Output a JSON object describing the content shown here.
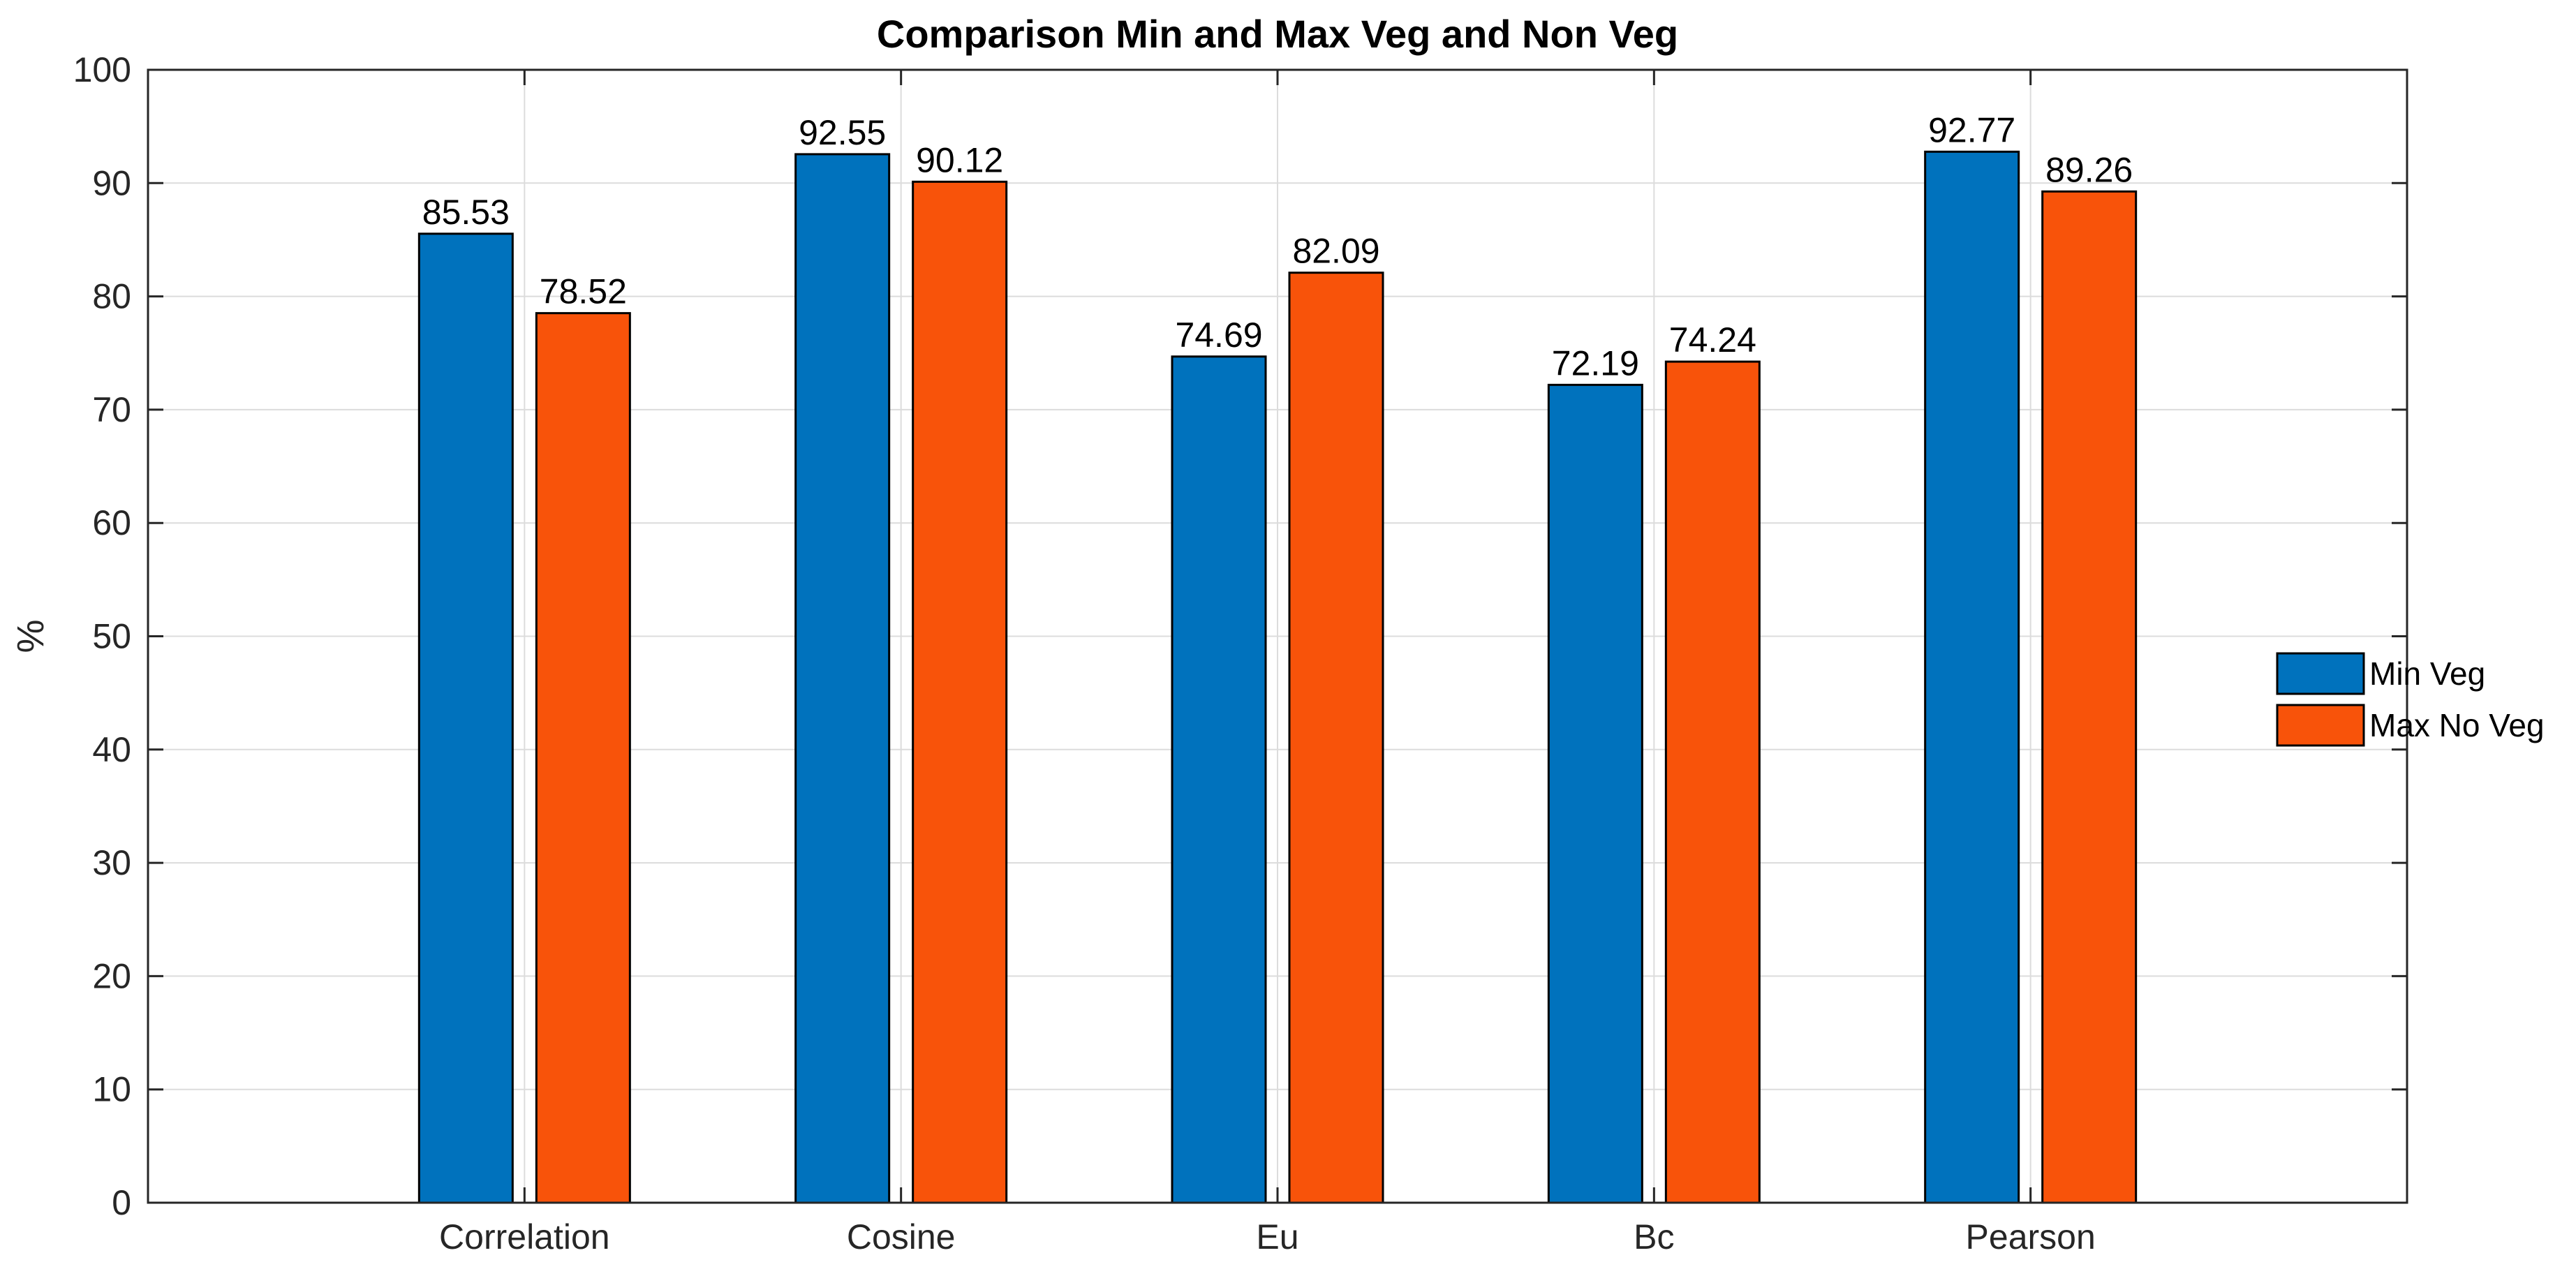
{
  "chart_data": {
    "type": "bar",
    "title": "Comparison Min and Max Veg and Non Veg",
    "xlabel": "",
    "ylabel": "%",
    "ylim": [
      0,
      100
    ],
    "yticks": [
      0,
      10,
      20,
      30,
      40,
      50,
      60,
      70,
      80,
      90,
      100
    ],
    "ytick_labels": [
      "0",
      "10",
      "20",
      "30",
      "40",
      "50",
      "60",
      "70",
      "80",
      "90",
      "100"
    ],
    "grid": true,
    "legend_position": "right",
    "categories": [
      "Correlation",
      "Cosine",
      "Eu",
      "Bc",
      "Pearson"
    ],
    "series": [
      {
        "name": "Min Veg",
        "color": "#0072BD",
        "values": [
          85.53,
          92.55,
          74.69,
          72.19,
          92.77
        ],
        "labels": [
          "85.53",
          "92.55",
          "74.69",
          "72.19",
          "92.77"
        ]
      },
      {
        "name": "Max No Veg",
        "color": "#F8530A",
        "values": [
          78.52,
          90.12,
          82.09,
          74.24,
          89.26
        ],
        "labels": [
          "78.52",
          "90.12",
          "82.09",
          "74.24",
          "89.26"
        ]
      }
    ]
  }
}
